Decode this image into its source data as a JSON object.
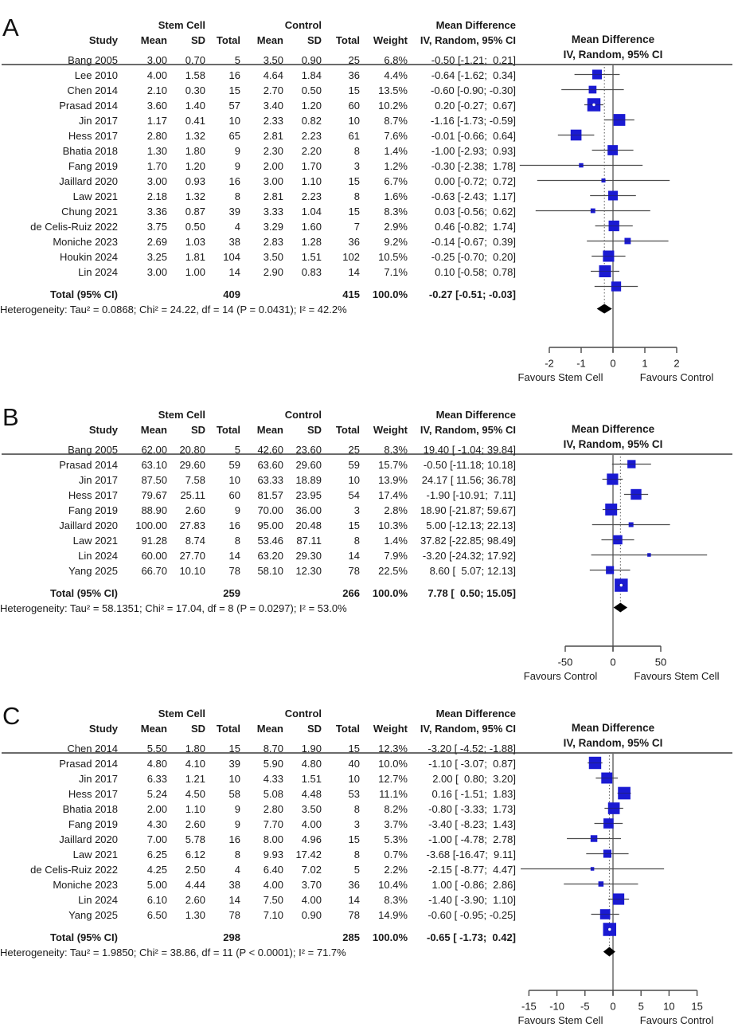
{
  "colors": {
    "square": "#1a1ad2",
    "ci_line": "#4d4d4d",
    "axis": "#4a4a4a",
    "diamond": "#000000",
    "zero_line": "#6b6b6b",
    "rule": "#3a3a3a",
    "dashed": "#555555"
  },
  "chart_data": [
    {
      "type": "forest",
      "panel_label": "A",
      "col_headers": {
        "study": "Study",
        "group1": "Stem Cell",
        "group2": "Control",
        "mean": "Mean",
        "sd": "SD",
        "total": "Total",
        "weight": "Weight",
        "effect1": "Mean Difference",
        "effect2": "IV, Random, 95% CI"
      },
      "studies": [
        {
          "study": "Bang 2005",
          "mean_e": "3.00",
          "sd_e": "0.70",
          "n_e": "5",
          "mean_c": "3.50",
          "sd_c": "0.90",
          "n_c": "25",
          "weight": "6.8%",
          "w": 6.8,
          "ci_text": "-0.50 [-1.21;  0.21]",
          "est": -0.5,
          "lo": -1.21,
          "hi": 0.21
        },
        {
          "study": "Lee 2010",
          "mean_e": "4.00",
          "sd_e": "1.58",
          "n_e": "16",
          "mean_c": "4.64",
          "sd_c": "1.84",
          "n_c": "36",
          "weight": "4.4%",
          "w": 4.4,
          "ci_text": "-0.64 [-1.62;  0.34]",
          "est": -0.64,
          "lo": -1.62,
          "hi": 0.34
        },
        {
          "study": "Chen 2014",
          "mean_e": "2.10",
          "sd_e": "0.30",
          "n_e": "15",
          "mean_c": "2.70",
          "sd_c": "0.50",
          "n_c": "15",
          "weight": "13.5%",
          "w": 13.5,
          "ci_text": "-0.60 [-0.90; -0.30]",
          "est": -0.6,
          "lo": -0.9,
          "hi": -0.3
        },
        {
          "study": "Prasad 2014",
          "mean_e": "3.60",
          "sd_e": "1.40",
          "n_e": "57",
          "mean_c": "3.40",
          "sd_c": "1.20",
          "n_c": "60",
          "weight": "10.2%",
          "w": 10.2,
          "ci_text": " 0.20 [-0.27;  0.67]",
          "est": 0.2,
          "lo": -0.27,
          "hi": 0.67
        },
        {
          "study": "Jin 2017",
          "mean_e": "1.17",
          "sd_e": "0.41",
          "n_e": "10",
          "mean_c": "2.33",
          "sd_c": "0.82",
          "n_c": "10",
          "weight": "8.7%",
          "w": 8.7,
          "ci_text": "-1.16 [-1.73; -0.59]",
          "est": -1.16,
          "lo": -1.73,
          "hi": -0.59
        },
        {
          "study": "Hess 2017",
          "mean_e": "2.80",
          "sd_e": "1.32",
          "n_e": "65",
          "mean_c": "2.81",
          "sd_c": "2.23",
          "n_c": "61",
          "weight": "7.6%",
          "w": 7.6,
          "ci_text": "-0.01 [-0.66;  0.64]",
          "est": -0.01,
          "lo": -0.66,
          "hi": 0.64
        },
        {
          "study": "Bhatia 2018",
          "mean_e": "1.30",
          "sd_e": "1.80",
          "n_e": "9",
          "mean_c": "2.30",
          "sd_c": "2.20",
          "n_c": "8",
          "weight": "1.4%",
          "w": 1.4,
          "ci_text": "-1.00 [-2.93;  0.93]",
          "est": -1.0,
          "lo": -2.93,
          "hi": 0.93
        },
        {
          "study": "Fang 2019",
          "mean_e": "1.70",
          "sd_e": "1.20",
          "n_e": "9",
          "mean_c": "2.00",
          "sd_c": "1.70",
          "n_c": "3",
          "weight": "1.2%",
          "w": 1.2,
          "ci_text": "-0.30 [-2.38;  1.78]",
          "est": -0.3,
          "lo": -2.38,
          "hi": 1.78
        },
        {
          "study": "Jaillard 2020",
          "mean_e": "3.00",
          "sd_e": "0.93",
          "n_e": "16",
          "mean_c": "3.00",
          "sd_c": "1.10",
          "n_c": "15",
          "weight": "6.7%",
          "w": 6.7,
          "ci_text": " 0.00 [-0.72;  0.72]",
          "est": 0.0,
          "lo": -0.72,
          "hi": 0.72
        },
        {
          "study": "Law 2021",
          "mean_e": "2.18",
          "sd_e": "1.32",
          "n_e": "8",
          "mean_c": "2.81",
          "sd_c": "2.23",
          "n_c": "8",
          "weight": "1.6%",
          "w": 1.6,
          "ci_text": "-0.63 [-2.43;  1.17]",
          "est": -0.63,
          "lo": -2.43,
          "hi": 1.17
        },
        {
          "study": "Chung 2021",
          "mean_e": "3.36",
          "sd_e": "0.87",
          "n_e": "39",
          "mean_c": "3.33",
          "sd_c": "1.04",
          "n_c": "15",
          "weight": "8.3%",
          "w": 8.3,
          "ci_text": " 0.03 [-0.56;  0.62]",
          "est": 0.03,
          "lo": -0.56,
          "hi": 0.62
        },
        {
          "study": "de Celis-Ruiz 2022",
          "mean_e": "3.75",
          "sd_e": "0.50",
          "n_e": "4",
          "mean_c": "3.29",
          "sd_c": "1.60",
          "n_c": "7",
          "weight": "2.9%",
          "w": 2.9,
          "ci_text": " 0.46 [-0.82;  1.74]",
          "est": 0.46,
          "lo": -0.82,
          "hi": 1.74
        },
        {
          "study": "Moniche 2023",
          "mean_e": "2.69",
          "sd_e": "1.03",
          "n_e": "38",
          "mean_c": "2.83",
          "sd_c": "1.28",
          "n_c": "36",
          "weight": "9.2%",
          "w": 9.2,
          "ci_text": "-0.14 [-0.67;  0.39]",
          "est": -0.14,
          "lo": -0.67,
          "hi": 0.39
        },
        {
          "study": "Houkin 2024",
          "mean_e": "3.25",
          "sd_e": "1.81",
          "n_e": "104",
          "mean_c": "3.50",
          "sd_c": "1.51",
          "n_c": "102",
          "weight": "10.5%",
          "w": 10.5,
          "ci_text": "-0.25 [-0.70;  0.20]",
          "est": -0.25,
          "lo": -0.7,
          "hi": 0.2
        },
        {
          "study": "Lin 2024",
          "mean_e": "3.00",
          "sd_e": "1.00",
          "n_e": "14",
          "mean_c": "2.90",
          "sd_c": "0.83",
          "n_c": "14",
          "weight": "7.1%",
          "w": 7.1,
          "ci_text": " 0.10 [-0.58;  0.78]",
          "est": 0.1,
          "lo": -0.58,
          "hi": 0.78
        }
      ],
      "total": {
        "label": "Total (95% CI)",
        "n_e": "409",
        "n_c": "415",
        "weight": "100.0%",
        "ci_text": "-0.27 [-0.51; -0.03]",
        "est": -0.27,
        "lo": -0.51,
        "hi": -0.03
      },
      "heterogeneity": "Heterogeneity: Tau² = 0.0868; Chi² = 24.22, df = 14 (P = 0.0431); I² = 42.2%",
      "axis": {
        "ticks": [
          -2,
          -1,
          0,
          1,
          2
        ],
        "tick_labels": [
          "-2",
          "-1",
          "0",
          "1",
          "2"
        ],
        "favours_left": "Favours Stem Cell",
        "favours_right": "Favours Control"
      }
    },
    {
      "type": "forest",
      "panel_label": "B",
      "col_headers": {
        "study": "Study",
        "group1": "Stem Cell",
        "group2": "Control",
        "mean": "Mean",
        "sd": "SD",
        "total": "Total",
        "weight": "Weight",
        "effect1": "Mean Difference",
        "effect2": "IV, Random, 95% CI"
      },
      "studies": [
        {
          "study": "Bang 2005",
          "mean_e": "62.00",
          "sd_e": "20.80",
          "n_e": "5",
          "mean_c": "42.60",
          "sd_c": "23.60",
          "n_c": "25",
          "weight": "8.3%",
          "w": 8.3,
          "ci_text": "19.40 [ -1.04; 39.84]",
          "est": 19.4,
          "lo": -1.04,
          "hi": 39.84
        },
        {
          "study": "Prasad 2014",
          "mean_e": "63.10",
          "sd_e": "29.60",
          "n_e": "59",
          "mean_c": "63.60",
          "sd_c": "29.60",
          "n_c": "59",
          "weight": "15.7%",
          "w": 15.7,
          "ci_text": "-0.50 [-11.18; 10.18]",
          "est": -0.5,
          "lo": -11.18,
          "hi": 10.18
        },
        {
          "study": "Jin 2017",
          "mean_e": "87.50",
          "sd_e": "7.58",
          "n_e": "10",
          "mean_c": "63.33",
          "sd_c": "18.89",
          "n_c": "10",
          "weight": "13.9%",
          "w": 13.9,
          "ci_text": "24.17 [ 11.56; 36.78]",
          "est": 24.17,
          "lo": 11.56,
          "hi": 36.78
        },
        {
          "study": "Hess 2017",
          "mean_e": "79.67",
          "sd_e": "25.11",
          "n_e": "60",
          "mean_c": "81.57",
          "sd_c": "23.95",
          "n_c": "54",
          "weight": "17.4%",
          "w": 17.4,
          "ci_text": "-1.90 [-10.91;  7.11]",
          "est": -1.9,
          "lo": -10.91,
          "hi": 7.11
        },
        {
          "study": "Fang 2019",
          "mean_e": "88.90",
          "sd_e": "2.60",
          "n_e": "9",
          "mean_c": "70.00",
          "sd_c": "36.00",
          "n_c": "3",
          "weight": "2.8%",
          "w": 2.8,
          "ci_text": "18.90 [-21.87; 59.67]",
          "est": 18.9,
          "lo": -21.87,
          "hi": 59.67
        },
        {
          "study": "Jaillard 2020",
          "mean_e": "100.00",
          "sd_e": "27.83",
          "n_e": "16",
          "mean_c": "95.00",
          "sd_c": "20.48",
          "n_c": "15",
          "weight": "10.3%",
          "w": 10.3,
          "ci_text": " 5.00 [-12.13; 22.13]",
          "est": 5.0,
          "lo": -12.13,
          "hi": 22.13
        },
        {
          "study": "Law 2021",
          "mean_e": "91.28",
          "sd_e": "8.74",
          "n_e": "8",
          "mean_c": "53.46",
          "sd_c": "87.11",
          "n_c": "8",
          "weight": "1.4%",
          "w": 1.4,
          "ci_text": "37.82 [-22.85; 98.49]",
          "est": 37.82,
          "lo": -22.85,
          "hi": 98.49
        },
        {
          "study": "Lin 2024",
          "mean_e": "60.00",
          "sd_e": "27.70",
          "n_e": "14",
          "mean_c": "63.20",
          "sd_c": "29.30",
          "n_c": "14",
          "weight": "7.9%",
          "w": 7.9,
          "ci_text": "-3.20 [-24.32; 17.92]",
          "est": -3.2,
          "lo": -24.32,
          "hi": 17.92
        },
        {
          "study": "Yang 2025",
          "mean_e": "66.70",
          "sd_e": "10.10",
          "n_e": "78",
          "mean_c": "58.10",
          "sd_c": "12.30",
          "n_c": "78",
          "weight": "22.5%",
          "w": 22.5,
          "ci_text": " 8.60 [  5.07; 12.13]",
          "est": 8.6,
          "lo": 5.07,
          "hi": 12.13
        }
      ],
      "total": {
        "label": "Total (95% CI)",
        "n_e": "259",
        "n_c": "266",
        "weight": "100.0%",
        "ci_text": " 7.78 [  0.50; 15.05]",
        "est": 7.78,
        "lo": 0.5,
        "hi": 15.05
      },
      "heterogeneity": "Heterogeneity: Tau² = 58.1351; Chi² = 17.04, df = 8 (P = 0.0297); I² = 53.0%",
      "axis": {
        "ticks": [
          -50,
          0,
          50
        ],
        "tick_labels": [
          "-50",
          "0",
          "50"
        ],
        "favours_left": "Favours Control",
        "favours_right": "Favours Stem Cell"
      }
    },
    {
      "type": "forest",
      "panel_label": "C",
      "col_headers": {
        "study": "Study",
        "group1": "Stem Cell",
        "group2": "Control",
        "mean": "Mean",
        "sd": "SD",
        "total": "Total",
        "weight": "Weight",
        "effect1": "Mean Difference",
        "effect2": "IV, Random, 95% CI"
      },
      "studies": [
        {
          "study": "Chen 2014",
          "mean_e": "5.50",
          "sd_e": "1.80",
          "n_e": "15",
          "mean_c": "8.70",
          "sd_c": "1.90",
          "n_c": "15",
          "weight": "12.3%",
          "w": 12.3,
          "ci_text": "-3.20 [ -4.52; -1.88]",
          "est": -3.2,
          "lo": -4.52,
          "hi": -1.88
        },
        {
          "study": "Prasad 2014",
          "mean_e": "4.80",
          "sd_e": "4.10",
          "n_e": "39",
          "mean_c": "5.90",
          "sd_c": "4.80",
          "n_c": "40",
          "weight": "10.0%",
          "w": 10.0,
          "ci_text": "-1.10 [ -3.07;  0.87]",
          "est": -1.1,
          "lo": -3.07,
          "hi": 0.87
        },
        {
          "study": "Jin 2017",
          "mean_e": "6.33",
          "sd_e": "1.21",
          "n_e": "10",
          "mean_c": "4.33",
          "sd_c": "1.51",
          "n_c": "10",
          "weight": "12.7%",
          "w": 12.7,
          "ci_text": " 2.00 [  0.80;  3.20]",
          "est": 2.0,
          "lo": 0.8,
          "hi": 3.2
        },
        {
          "study": "Hess 2017",
          "mean_e": "5.24",
          "sd_e": "4.50",
          "n_e": "58",
          "mean_c": "5.08",
          "sd_c": "4.48",
          "n_c": "53",
          "weight": "11.1%",
          "w": 11.1,
          "ci_text": " 0.16 [ -1.51;  1.83]",
          "est": 0.16,
          "lo": -1.51,
          "hi": 1.83
        },
        {
          "study": "Bhatia 2018",
          "mean_e": "2.00",
          "sd_e": "1.10",
          "n_e": "9",
          "mean_c": "2.80",
          "sd_c": "3.50",
          "n_c": "8",
          "weight": "8.2%",
          "w": 8.2,
          "ci_text": "-0.80 [ -3.33;  1.73]",
          "est": -0.8,
          "lo": -3.33,
          "hi": 1.73
        },
        {
          "study": "Fang 2019",
          "mean_e": "4.30",
          "sd_e": "2.60",
          "n_e": "9",
          "mean_c": "7.70",
          "sd_c": "4.00",
          "n_c": "3",
          "weight": "3.7%",
          "w": 3.7,
          "ci_text": "-3.40 [ -8.23;  1.43]",
          "est": -3.4,
          "lo": -8.23,
          "hi": 1.43
        },
        {
          "study": "Jaillard 2020",
          "mean_e": "7.00",
          "sd_e": "5.78",
          "n_e": "16",
          "mean_c": "8.00",
          "sd_c": "4.96",
          "n_c": "15",
          "weight": "5.3%",
          "w": 5.3,
          "ci_text": "-1.00 [ -4.78;  2.78]",
          "est": -1.0,
          "lo": -4.78,
          "hi": 2.78
        },
        {
          "study": "Law 2021",
          "mean_e": "6.25",
          "sd_e": "6.12",
          "n_e": "8",
          "mean_c": "9.93",
          "sd_c": "17.42",
          "n_c": "8",
          "weight": "0.7%",
          "w": 0.7,
          "ci_text": "-3.68 [-16.47;  9.11]",
          "est": -3.68,
          "lo": -16.47,
          "hi": 9.11
        },
        {
          "study": "de Celis-Ruiz 2022",
          "mean_e": "4.25",
          "sd_e": "2.50",
          "n_e": "4",
          "mean_c": "6.40",
          "sd_c": "7.02",
          "n_c": "5",
          "weight": "2.2%",
          "w": 2.2,
          "ci_text": "-2.15 [ -8.77;  4.47]",
          "est": -2.15,
          "lo": -8.77,
          "hi": 4.47
        },
        {
          "study": "Moniche 2023",
          "mean_e": "5.00",
          "sd_e": "4.44",
          "n_e": "38",
          "mean_c": "4.00",
          "sd_c": "3.70",
          "n_c": "36",
          "weight": "10.4%",
          "w": 10.4,
          "ci_text": " 1.00 [ -0.86;  2.86]",
          "est": 1.0,
          "lo": -0.86,
          "hi": 2.86
        },
        {
          "study": "Lin 2024",
          "mean_e": "6.10",
          "sd_e": "2.60",
          "n_e": "14",
          "mean_c": "7.50",
          "sd_c": "4.00",
          "n_c": "14",
          "weight": "8.3%",
          "w": 8.3,
          "ci_text": "-1.40 [ -3.90;  1.10]",
          "est": -1.4,
          "lo": -3.9,
          "hi": 1.1
        },
        {
          "study": "Yang 2025",
          "mean_e": "6.50",
          "sd_e": "1.30",
          "n_e": "78",
          "mean_c": "7.10",
          "sd_c": "0.90",
          "n_c": "78",
          "weight": "14.9%",
          "w": 14.9,
          "ci_text": "-0.60 [ -0.95; -0.25]",
          "est": -0.6,
          "lo": -0.95,
          "hi": -0.25
        }
      ],
      "total": {
        "label": "Total (95% CI)",
        "n_e": "298",
        "n_c": "285",
        "weight": "100.0%",
        "ci_text": "-0.65 [ -1.73;  0.42]",
        "est": -0.65,
        "lo": -1.73,
        "hi": 0.42
      },
      "heterogeneity": "Heterogeneity: Tau² = 1.9850; Chi² = 38.86, df = 11 (P < 0.0001); I² = 71.7%",
      "axis": {
        "ticks": [
          -15,
          -10,
          -5,
          0,
          5,
          10,
          15
        ],
        "tick_labels": [
          "-15",
          "-10",
          "-5",
          "0",
          "5",
          "10",
          "15"
        ],
        "favours_left": "Favours Stem Cell",
        "favours_right": "Favours Control"
      }
    }
  ]
}
